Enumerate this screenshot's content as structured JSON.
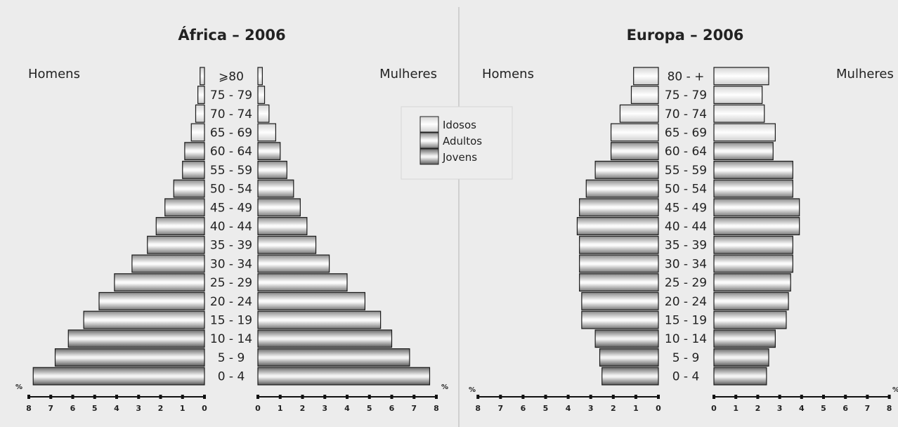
{
  "chart_data": [
    {
      "type": "bar",
      "title": "África – 2006",
      "left_label": "Homens",
      "right_label": "Mulheres",
      "unit_label": "%",
      "categories": [
        "0 - 4",
        "5 - 9",
        "10 - 14",
        "15 - 19",
        "20 - 24",
        "25 - 29",
        "30 - 34",
        "35 - 39",
        "40 - 44",
        "45 - 49",
        "50 - 54",
        "55 - 59",
        "60 - 64",
        "65 - 69",
        "70 - 74",
        "75 - 79",
        "⩾80"
      ],
      "series": [
        {
          "name": "Homens",
          "values": [
            7.8,
            6.8,
            6.2,
            5.5,
            4.8,
            4.1,
            3.3,
            2.6,
            2.2,
            1.8,
            1.4,
            1.0,
            0.9,
            0.6,
            0.4,
            0.3,
            0.2
          ]
        },
        {
          "name": "Mulheres",
          "values": [
            7.7,
            6.8,
            6.0,
            5.5,
            4.8,
            4.0,
            3.2,
            2.6,
            2.2,
            1.9,
            1.6,
            1.3,
            1.0,
            0.8,
            0.5,
            0.3,
            0.2
          ]
        }
      ],
      "age_groups": {
        "Jovens": [
          "0 - 4",
          "5 - 9",
          "10 - 14"
        ],
        "Adultos": [
          "15 - 19",
          "20 - 24",
          "25 - 29",
          "30 - 34",
          "35 - 39",
          "40 - 44",
          "45 - 49",
          "50 - 54",
          "55 - 59",
          "60 - 64"
        ],
        "Idosos": [
          "65 - 69",
          "70 - 74",
          "75 - 79",
          "⩾80"
        ]
      },
      "xlim": [
        0,
        8
      ],
      "left_ticks": [
        "8",
        "7",
        "6",
        "5",
        "4",
        "3",
        "2",
        "1",
        "0"
      ],
      "right_ticks": [
        "0",
        "1",
        "2",
        "3",
        "4",
        "5",
        "6",
        "7",
        "8"
      ]
    },
    {
      "type": "bar",
      "title": "Europa – 2006",
      "left_label": "Homens",
      "right_label": "Mulheres",
      "unit_label": "%",
      "categories": [
        "0 - 4",
        "5 - 9",
        "10 - 14",
        "15 - 19",
        "20 - 24",
        "25 - 29",
        "30 - 34",
        "35 - 39",
        "40 - 44",
        "45 - 49",
        "50 - 54",
        "55 - 59",
        "60 - 64",
        "65 - 69",
        "70 - 74",
        "75 - 79",
        "80 - +"
      ],
      "series": [
        {
          "name": "Homens",
          "values": [
            2.5,
            2.6,
            2.8,
            3.4,
            3.4,
            3.5,
            3.5,
            3.5,
            3.6,
            3.5,
            3.2,
            2.8,
            2.1,
            2.1,
            1.7,
            1.2,
            1.1
          ]
        },
        {
          "name": "Mulheres",
          "values": [
            2.4,
            2.5,
            2.8,
            3.3,
            3.4,
            3.5,
            3.6,
            3.6,
            3.9,
            3.9,
            3.6,
            3.6,
            2.7,
            2.8,
            2.3,
            2.2,
            2.5
          ]
        }
      ],
      "age_groups": {
        "Jovens": [
          "0 - 4",
          "5 - 9",
          "10 - 14"
        ],
        "Adultos": [
          "15 - 19",
          "20 - 24",
          "25 - 29",
          "30 - 34",
          "35 - 39",
          "40 - 44",
          "45 - 49",
          "50 - 54",
          "55 - 59",
          "60 - 64"
        ],
        "Idosos": [
          "65 - 69",
          "70 - 74",
          "75 - 79",
          "80 - +"
        ]
      },
      "xlim": [
        0,
        8
      ],
      "left_ticks": [
        "8",
        "7",
        "6",
        "5",
        "4",
        "3",
        "2",
        "1",
        "0"
      ],
      "right_ticks": [
        "0",
        "1",
        "2",
        "3",
        "4",
        "5",
        "6",
        "7",
        "8"
      ]
    }
  ],
  "legend": {
    "items": [
      {
        "label": "Idosos",
        "color": "#f4f4f4"
      },
      {
        "label": "Adultos",
        "color": "#d2d2d2"
      },
      {
        "label": "Jovens",
        "color": "#a8a8a8"
      }
    ]
  }
}
